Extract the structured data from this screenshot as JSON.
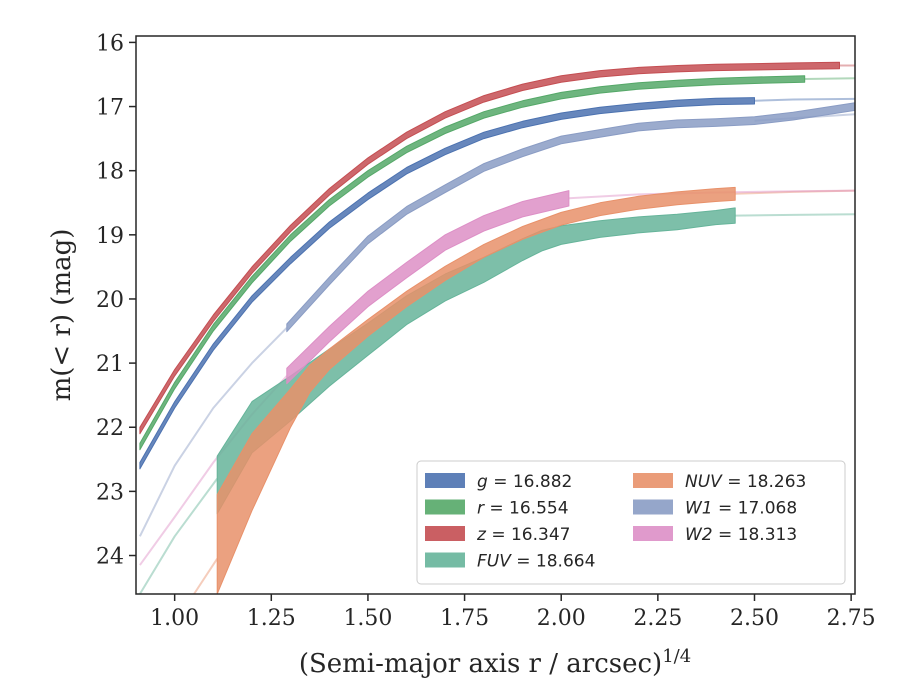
{
  "chart_data": {
    "type": "line",
    "xlabel": "(Semi-major axis r / arcsec)",
    "xlabel_sup": "1/4",
    "ylabel": "m(< r) (mag)",
    "xlim": [
      0.9,
      2.76
    ],
    "ylim": [
      24.6,
      15.9
    ],
    "y_inverted": true,
    "xticks": [
      1.0,
      1.25,
      1.5,
      1.75,
      2.0,
      2.25,
      2.5,
      2.75
    ],
    "xtick_labels": [
      "1.00",
      "1.25",
      "1.50",
      "1.75",
      "2.00",
      "2.25",
      "2.50",
      "2.75"
    ],
    "yticks": [
      16,
      17,
      18,
      19,
      20,
      21,
      22,
      23,
      24
    ],
    "ytick_labels": [
      "16",
      "17",
      "18",
      "19",
      "20",
      "21",
      "22",
      "23",
      "24"
    ],
    "grid": false,
    "legend_position": "lower-right",
    "legend_columns": 2,
    "series": [
      {
        "name": "g = 16.882",
        "legend_var": "g",
        "legend_value": "16.882",
        "color": "#4c72b0",
        "main_x": [
          0.91,
          1.0,
          1.1,
          1.2,
          1.3,
          1.4,
          1.5,
          1.6,
          1.7,
          1.8,
          1.9,
          2.0,
          2.1,
          2.2,
          2.3,
          2.4,
          2.5
        ],
        "main_y": [
          22.6,
          21.65,
          20.75,
          20.0,
          19.4,
          18.85,
          18.4,
          18.0,
          17.7,
          17.45,
          17.28,
          17.15,
          17.06,
          17.0,
          16.95,
          16.92,
          16.91
        ],
        "lower_w": 0.05,
        "upper_w": 0.05,
        "ext_x": [
          2.5,
          2.6,
          2.76
        ],
        "ext_y": [
          16.91,
          16.89,
          16.88
        ]
      },
      {
        "name": "r = 16.554",
        "legend_var": "r",
        "legend_value": "16.554",
        "color": "#55a868",
        "main_x": [
          0.91,
          1.0,
          1.1,
          1.2,
          1.3,
          1.4,
          1.5,
          1.6,
          1.7,
          1.8,
          1.9,
          2.0,
          2.1,
          2.2,
          2.3,
          2.4,
          2.5,
          2.63
        ],
        "main_y": [
          22.3,
          21.35,
          20.45,
          19.7,
          19.05,
          18.5,
          18.05,
          17.67,
          17.37,
          17.13,
          16.96,
          16.83,
          16.74,
          16.68,
          16.64,
          16.61,
          16.59,
          16.57
        ],
        "lower_w": 0.05,
        "upper_w": 0.05,
        "ext_x": [
          2.63,
          2.76
        ],
        "ext_y": [
          16.57,
          16.56
        ]
      },
      {
        "name": "z = 16.347",
        "legend_var": "z",
        "legend_value": "16.347",
        "color": "#c44e52",
        "main_x": [
          0.91,
          1.0,
          1.1,
          1.2,
          1.3,
          1.4,
          1.5,
          1.6,
          1.7,
          1.8,
          1.9,
          2.0,
          2.1,
          2.2,
          2.3,
          2.4,
          2.5,
          2.6,
          2.72
        ],
        "main_y": [
          22.05,
          21.15,
          20.3,
          19.55,
          18.9,
          18.33,
          17.85,
          17.45,
          17.13,
          16.88,
          16.7,
          16.57,
          16.49,
          16.44,
          16.41,
          16.39,
          16.38,
          16.37,
          16.36
        ],
        "lower_w": 0.05,
        "upper_w": 0.05,
        "ext_x": [
          2.72,
          2.76
        ],
        "ext_y": [
          16.36,
          16.36
        ]
      },
      {
        "name": "FUV = 18.664",
        "legend_var": "FUV",
        "legend_value": "18.664",
        "color": "#66b49a",
        "main_x": [
          1.11,
          1.2,
          1.3,
          1.4,
          1.5,
          1.6,
          1.7,
          1.8,
          1.9,
          1.95,
          2.0,
          2.1,
          2.2,
          2.3,
          2.35,
          2.4,
          2.45
        ],
        "main_y": [
          22.8,
          21.9,
          21.45,
          20.98,
          20.55,
          20.1,
          19.75,
          19.48,
          19.18,
          19.05,
          18.97,
          18.88,
          18.82,
          18.78,
          18.75,
          18.72,
          18.7
        ],
        "lower_w": [
          0.55,
          0.5,
          0.45,
          0.38,
          0.33,
          0.3,
          0.28,
          0.26,
          0.22,
          0.2,
          0.18,
          0.16,
          0.15,
          0.14,
          0.13,
          0.12,
          0.12
        ],
        "upper_w": [
          0.35,
          0.3,
          0.25,
          0.2,
          0.17,
          0.15,
          0.14,
          0.13,
          0.12,
          0.12,
          0.11,
          0.1,
          0.1,
          0.1,
          0.1,
          0.1,
          0.12
        ],
        "ext_x": [
          0.91,
          1.0,
          1.11
        ],
        "ext_y": [
          24.6,
          23.7,
          22.8
        ],
        "ext2_x": [
          2.45,
          2.6,
          2.76
        ],
        "ext2_y": [
          18.7,
          18.69,
          18.68
        ]
      },
      {
        "name": "NUV = 18.263",
        "legend_var": "NUV",
        "legend_value": "18.263",
        "color": "#e8916a",
        "main_x": [
          1.11,
          1.2,
          1.3,
          1.35,
          1.4,
          1.5,
          1.6,
          1.7,
          1.8,
          1.9,
          2.0,
          2.1,
          2.2,
          2.3,
          2.4,
          2.45
        ],
        "main_y": [
          24.05,
          22.8,
          21.7,
          21.25,
          20.95,
          20.45,
          20.0,
          19.6,
          19.25,
          18.97,
          18.75,
          18.6,
          18.5,
          18.43,
          18.38,
          18.36
        ],
        "lower_w": [
          0.55,
          0.5,
          0.3,
          0.2,
          0.15,
          0.13,
          0.12,
          0.11,
          0.1,
          0.1,
          0.1,
          0.1,
          0.1,
          0.1,
          0.1,
          0.1
        ],
        "upper_w": [
          1.0,
          0.7,
          0.3,
          0.22,
          0.17,
          0.13,
          0.12,
          0.11,
          0.1,
          0.1,
          0.1,
          0.1,
          0.1,
          0.1,
          0.1,
          0.1
        ],
        "ext_x": [
          1.05,
          1.11
        ],
        "ext_y": [
          24.6,
          24.05
        ],
        "ext2_x": [
          2.45,
          2.6,
          2.76
        ],
        "ext2_y": [
          18.36,
          18.33,
          18.31
        ]
      },
      {
        "name": "W1 = 17.068",
        "legend_var": "W1",
        "legend_value": "17.068",
        "color": "#8a9cc4",
        "main_x": [
          1.29,
          1.4,
          1.5,
          1.6,
          1.7,
          1.8,
          1.9,
          2.0,
          2.1,
          2.2,
          2.3,
          2.4,
          2.5,
          2.6,
          2.76
        ],
        "main_y": [
          20.45,
          19.72,
          19.08,
          18.62,
          18.28,
          17.95,
          17.72,
          17.52,
          17.42,
          17.32,
          17.27,
          17.25,
          17.22,
          17.15,
          17.0
        ],
        "lower_w": 0.06,
        "upper_w": 0.06,
        "ext_x": [
          0.91,
          1.0,
          1.1,
          1.2,
          1.29
        ],
        "ext_y": [
          23.7,
          22.6,
          21.7,
          21.0,
          20.45
        ],
        "ext2_x": [
          2.5,
          2.6,
          2.76
        ],
        "ext2_y": [
          17.22,
          17.18,
          17.12
        ]
      },
      {
        "name": "W2 = 18.313",
        "legend_var": "W2",
        "legend_value": "18.313",
        "color": "#dd8fc6",
        "main_x": [
          1.29,
          1.4,
          1.5,
          1.6,
          1.7,
          1.8,
          1.9,
          2.02
        ],
        "main_y": [
          21.2,
          20.55,
          20.0,
          19.55,
          19.12,
          18.82,
          18.6,
          18.43
        ],
        "lower_w": 0.12,
        "upper_w": 0.12,
        "ext_x": [
          0.91,
          1.0,
          1.1,
          1.2,
          1.29
        ],
        "ext_y": [
          24.15,
          23.4,
          22.55,
          21.8,
          21.2
        ],
        "ext2_x": [
          2.02,
          2.2,
          2.4,
          2.6,
          2.76
        ],
        "ext2_y": [
          18.43,
          18.37,
          18.34,
          18.32,
          18.31
        ]
      }
    ],
    "legend_order": [
      [
        0,
        1,
        2,
        3
      ],
      [
        4,
        5,
        6
      ]
    ]
  }
}
